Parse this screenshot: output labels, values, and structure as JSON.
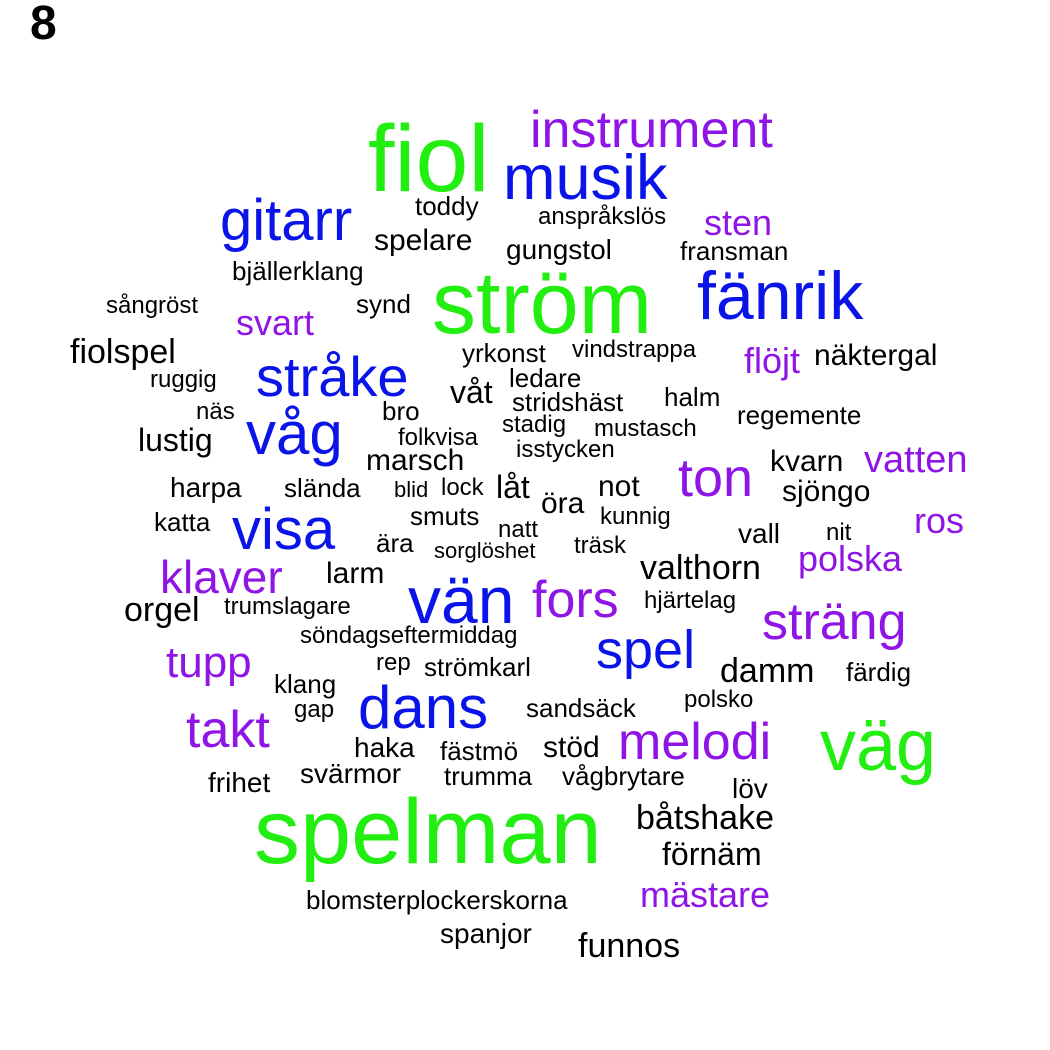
{
  "figure_label": "8",
  "colors": {
    "green": "#22ee11",
    "blue": "#0a14e8",
    "purple": "#8f14e6",
    "black": "#000000"
  },
  "words": [
    {
      "text": "fiol",
      "color": "green",
      "weight": 5
    },
    {
      "text": "instrument",
      "color": "purple",
      "weight": 3
    },
    {
      "text": "musik",
      "color": "blue",
      "weight": 4
    },
    {
      "text": "gitarr",
      "color": "blue",
      "weight": 4
    },
    {
      "text": "toddy",
      "color": "black",
      "weight": 1
    },
    {
      "text": "anspråkslös",
      "color": "black",
      "weight": 1
    },
    {
      "text": "sten",
      "color": "purple",
      "weight": 2
    },
    {
      "text": "spelare",
      "color": "black",
      "weight": 1
    },
    {
      "text": "gungstol",
      "color": "black",
      "weight": 1
    },
    {
      "text": "fransman",
      "color": "black",
      "weight": 1
    },
    {
      "text": "bjällerklang",
      "color": "black",
      "weight": 1
    },
    {
      "text": "ström",
      "color": "green",
      "weight": 5
    },
    {
      "text": "fänrik",
      "color": "blue",
      "weight": 4
    },
    {
      "text": "sångröst",
      "color": "black",
      "weight": 1
    },
    {
      "text": "synd",
      "color": "black",
      "weight": 1
    },
    {
      "text": "svart",
      "color": "purple",
      "weight": 2
    },
    {
      "text": "fiolspel",
      "color": "black",
      "weight": 2
    },
    {
      "text": "yrkonst",
      "color": "black",
      "weight": 1
    },
    {
      "text": "vindstrappa",
      "color": "black",
      "weight": 1
    },
    {
      "text": "flöjt",
      "color": "purple",
      "weight": 2
    },
    {
      "text": "näktergal",
      "color": "black",
      "weight": 2
    },
    {
      "text": "ruggig",
      "color": "black",
      "weight": 1
    },
    {
      "text": "stråke",
      "color": "blue",
      "weight": 4
    },
    {
      "text": "ledare",
      "color": "black",
      "weight": 1
    },
    {
      "text": "våt",
      "color": "black",
      "weight": 2
    },
    {
      "text": "halm",
      "color": "black",
      "weight": 1
    },
    {
      "text": "stridshäst",
      "color": "black",
      "weight": 1
    },
    {
      "text": "näs",
      "color": "black",
      "weight": 1
    },
    {
      "text": "bro",
      "color": "black",
      "weight": 1
    },
    {
      "text": "regemente",
      "color": "black",
      "weight": 1
    },
    {
      "text": "stadig",
      "color": "black",
      "weight": 1
    },
    {
      "text": "mustasch",
      "color": "black",
      "weight": 1
    },
    {
      "text": "lustig",
      "color": "black",
      "weight": 2
    },
    {
      "text": "våg",
      "color": "blue",
      "weight": 4
    },
    {
      "text": "folkvisa",
      "color": "black",
      "weight": 1
    },
    {
      "text": "isstycken",
      "color": "black",
      "weight": 1
    },
    {
      "text": "marsch",
      "color": "black",
      "weight": 2
    },
    {
      "text": "ton",
      "color": "purple",
      "weight": 4
    },
    {
      "text": "kvarn",
      "color": "black",
      "weight": 2
    },
    {
      "text": "vatten",
      "color": "purple",
      "weight": 2
    },
    {
      "text": "harpa",
      "color": "black",
      "weight": 1
    },
    {
      "text": "slända",
      "color": "black",
      "weight": 1
    },
    {
      "text": "blid",
      "color": "black",
      "weight": 1
    },
    {
      "text": "lock",
      "color": "black",
      "weight": 1
    },
    {
      "text": "låt",
      "color": "black",
      "weight": 2
    },
    {
      "text": "not",
      "color": "black",
      "weight": 2
    },
    {
      "text": "sjöngo",
      "color": "black",
      "weight": 2
    },
    {
      "text": "öra",
      "color": "black",
      "weight": 2
    },
    {
      "text": "katta",
      "color": "black",
      "weight": 1
    },
    {
      "text": "visa",
      "color": "blue",
      "weight": 4
    },
    {
      "text": "smuts",
      "color": "black",
      "weight": 1
    },
    {
      "text": "kunnig",
      "color": "black",
      "weight": 1
    },
    {
      "text": "ros",
      "color": "purple",
      "weight": 2
    },
    {
      "text": "natt",
      "color": "black",
      "weight": 1
    },
    {
      "text": "vall",
      "color": "black",
      "weight": 1
    },
    {
      "text": "nit",
      "color": "black",
      "weight": 1
    },
    {
      "text": "ära",
      "color": "black",
      "weight": 1
    },
    {
      "text": "sorglöshet",
      "color": "black",
      "weight": 1
    },
    {
      "text": "träsk",
      "color": "black",
      "weight": 1
    },
    {
      "text": "klaver",
      "color": "purple",
      "weight": 3
    },
    {
      "text": "polska",
      "color": "purple",
      "weight": 2
    },
    {
      "text": "valthorn",
      "color": "black",
      "weight": 2
    },
    {
      "text": "larm",
      "color": "black",
      "weight": 1
    },
    {
      "text": "vän",
      "color": "blue",
      "weight": 4
    },
    {
      "text": "fors",
      "color": "purple",
      "weight": 4
    },
    {
      "text": "orgel",
      "color": "black",
      "weight": 2
    },
    {
      "text": "trumslagare",
      "color": "black",
      "weight": 1
    },
    {
      "text": "hjärtelag",
      "color": "black",
      "weight": 1
    },
    {
      "text": "sträng",
      "color": "purple",
      "weight": 3
    },
    {
      "text": "söndagseftermiddag",
      "color": "black",
      "weight": 1
    },
    {
      "text": "spel",
      "color": "blue",
      "weight": 4
    },
    {
      "text": "tupp",
      "color": "purple",
      "weight": 3
    },
    {
      "text": "rep",
      "color": "black",
      "weight": 1
    },
    {
      "text": "strömkarl",
      "color": "black",
      "weight": 1
    },
    {
      "text": "damm",
      "color": "black",
      "weight": 2
    },
    {
      "text": "färdig",
      "color": "black",
      "weight": 1
    },
    {
      "text": "klang",
      "color": "black",
      "weight": 1
    },
    {
      "text": "polsko",
      "color": "black",
      "weight": 1
    },
    {
      "text": "gap",
      "color": "black",
      "weight": 1
    },
    {
      "text": "dans",
      "color": "blue",
      "weight": 4
    },
    {
      "text": "sandsäck",
      "color": "black",
      "weight": 1
    },
    {
      "text": "takt",
      "color": "purple",
      "weight": 3
    },
    {
      "text": "melodi",
      "color": "purple",
      "weight": 3
    },
    {
      "text": "väg",
      "color": "green",
      "weight": 5
    },
    {
      "text": "haka",
      "color": "black",
      "weight": 1
    },
    {
      "text": "fästmö",
      "color": "black",
      "weight": 1
    },
    {
      "text": "stöd",
      "color": "black",
      "weight": 1
    },
    {
      "text": "svärmor",
      "color": "black",
      "weight": 1
    },
    {
      "text": "trumma",
      "color": "black",
      "weight": 1
    },
    {
      "text": "vågbrytare",
      "color": "black",
      "weight": 1
    },
    {
      "text": "frihet",
      "color": "black",
      "weight": 1
    },
    {
      "text": "löv",
      "color": "black",
      "weight": 1
    },
    {
      "text": "båtshake",
      "color": "black",
      "weight": 2
    },
    {
      "text": "spelman",
      "color": "green",
      "weight": 5
    },
    {
      "text": "förnäm",
      "color": "black",
      "weight": 2
    },
    {
      "text": "mästare",
      "color": "purple",
      "weight": 2
    },
    {
      "text": "blomsterplockerskorna",
      "color": "black",
      "weight": 1
    },
    {
      "text": "spanjor",
      "color": "black",
      "weight": 1
    },
    {
      "text": "funnos",
      "color": "black",
      "weight": 2
    }
  ]
}
